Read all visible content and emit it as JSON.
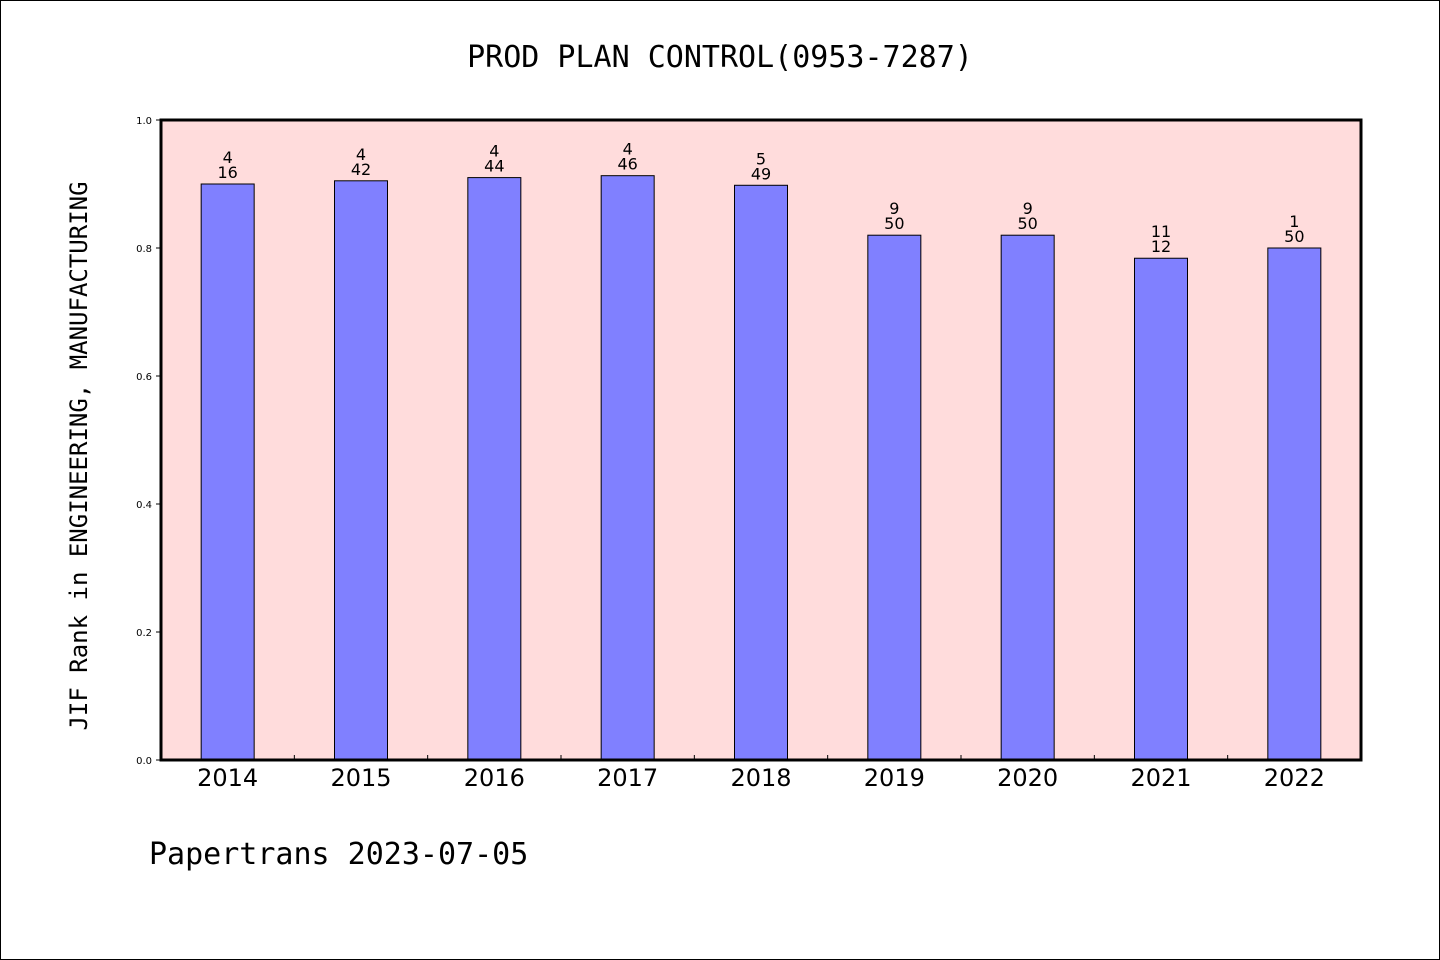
{
  "chart_data": {
    "type": "bar",
    "title": "PROD PLAN CONTROL(0953-7287)",
    "ylabel": "JIF Rank in ENGINEERING, MANUFACTURING",
    "xlabel": "",
    "categories": [
      "2014",
      "2015",
      "2016",
      "2017",
      "2018",
      "2019",
      "2020",
      "2021",
      "2022"
    ],
    "values": [
      0.9,
      0.905,
      0.91,
      0.913,
      0.898,
      0.82,
      0.82,
      0.784,
      0.8
    ],
    "bar_labels": [
      [
        "4",
        "16"
      ],
      [
        "4",
        "42"
      ],
      [
        "4",
        "44"
      ],
      [
        "4",
        "46"
      ],
      [
        "5",
        "49"
      ],
      [
        "9",
        "50"
      ],
      [
        "9",
        "50"
      ],
      [
        "11",
        "12"
      ],
      [
        "1",
        "50"
      ]
    ],
    "ylim": [
      0,
      1.0
    ],
    "yticks": [
      "0.0",
      "0.2",
      "0.4",
      "0.6",
      "0.8",
      "1.0"
    ],
    "grid": false,
    "colors": {
      "plot_background": "#ffdcdc",
      "bar_fill": "#8080ff",
      "bar_stroke": "#000000"
    }
  },
  "footer": "Papertrans 2023-07-05"
}
